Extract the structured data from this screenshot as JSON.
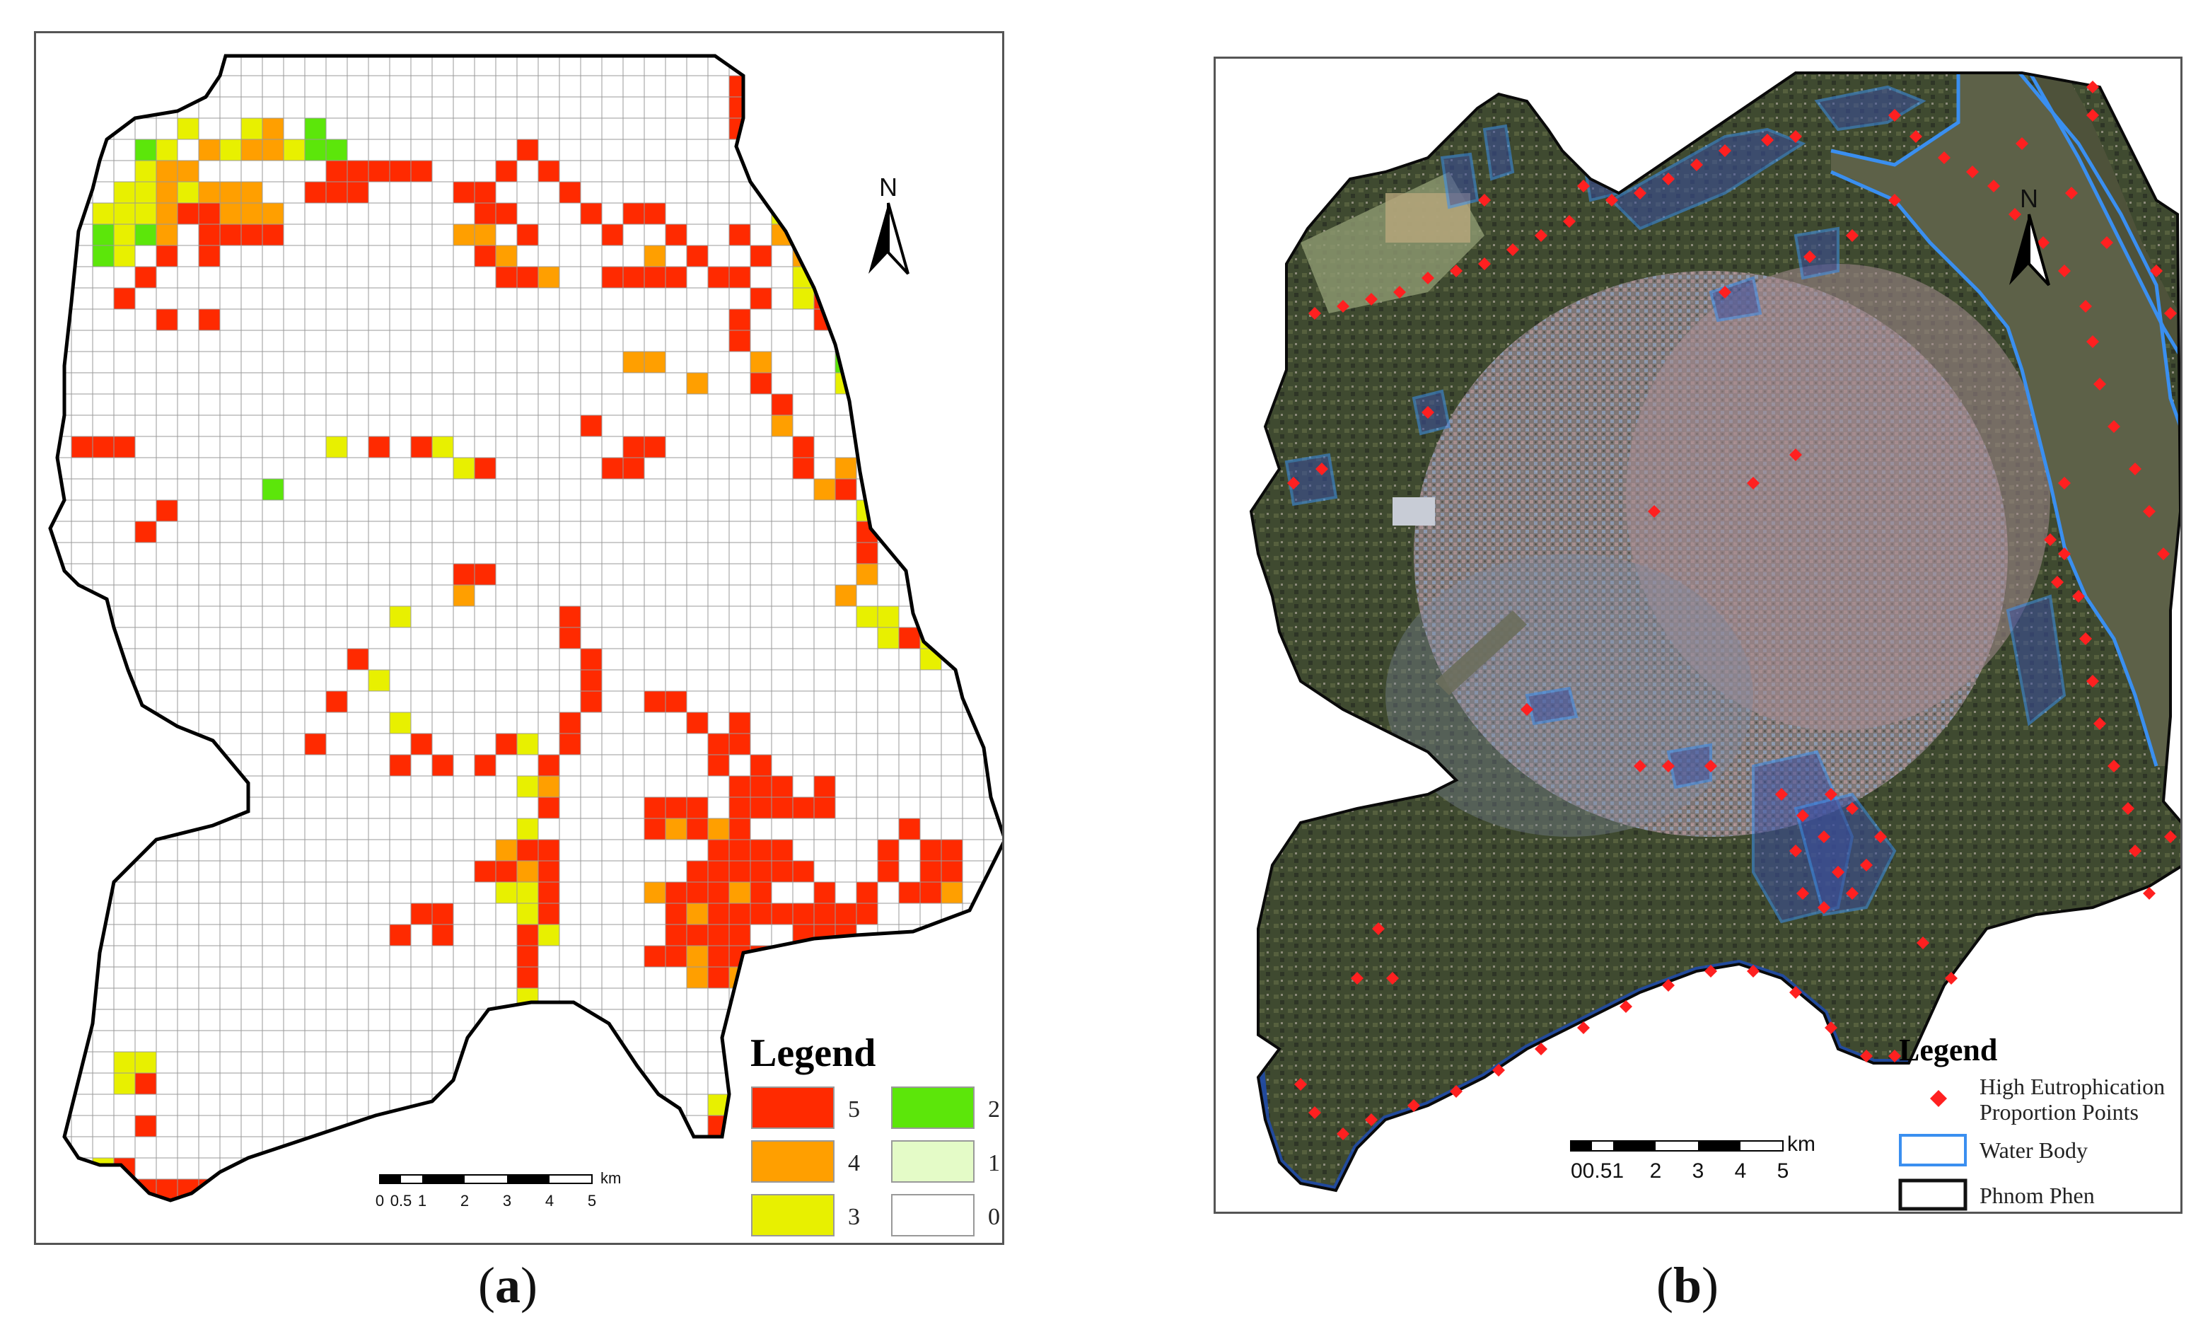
{
  "panel_a": {
    "caption_letter": "a",
    "north_label": "N",
    "legend": {
      "title": "Legend",
      "items": [
        {
          "label": "5",
          "color": "#ff2a00"
        },
        {
          "label": "2",
          "color": "#5ce60a"
        },
        {
          "label": "4",
          "color": "#ff9f00"
        },
        {
          "label": "1",
          "color": "#e4fbc7"
        },
        {
          "label": "3",
          "color": "#e8f000"
        },
        {
          "label": "0",
          "color": "#ffffff"
        }
      ]
    },
    "scalebar": {
      "ticks": [
        "0",
        "0.5",
        "1",
        "2",
        "3",
        "4",
        "5"
      ],
      "unit": "km"
    }
  },
  "panel_b": {
    "caption_letter": "b",
    "north_label": "N",
    "legend": {
      "title": "Legend",
      "items": [
        {
          "label": "High Eutrophication Proportion Points",
          "label_line1": "High Eutrophication",
          "label_line2": "Proportion Points",
          "color": "#ff2020"
        },
        {
          "label": "Water Body",
          "color": "#3a8ff0"
        },
        {
          "label": "Phnom Phen",
          "color": "#111111"
        }
      ]
    },
    "scalebar": {
      "ticks": [
        "00.51",
        "2",
        "3",
        "4",
        "5"
      ],
      "unit": "km"
    }
  }
}
